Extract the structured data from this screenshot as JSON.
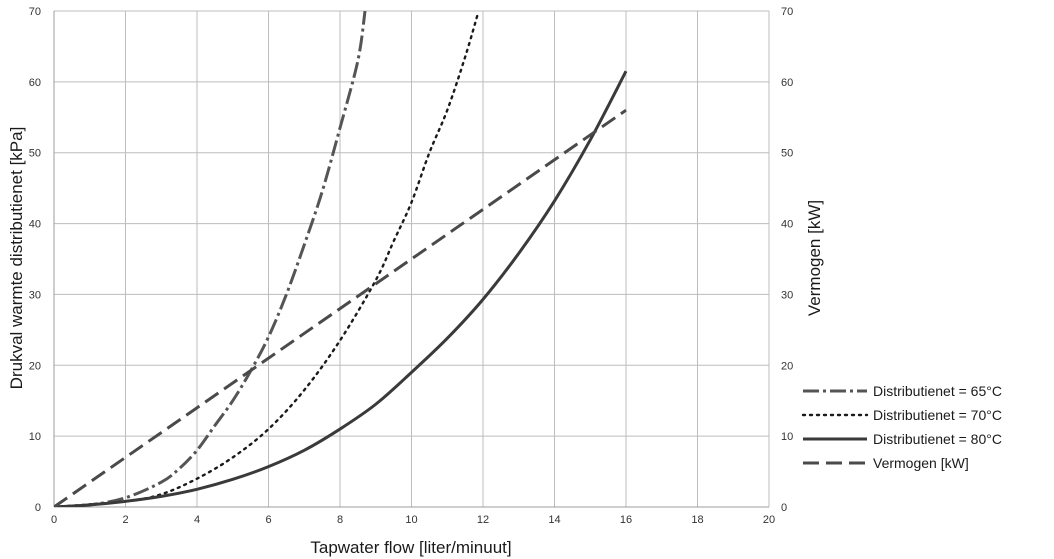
{
  "chart_data": {
    "type": "line",
    "xlabel": "Tapwater flow [liter/minuut]",
    "ylabel_left": "Drukval warmte distributienet [kPa]",
    "ylabel_right": "Vermogen [kW]",
    "xlim": [
      0,
      20
    ],
    "ylim_left": [
      0,
      70
    ],
    "ylim_right": [
      0,
      70
    ],
    "x_ticks": [
      "0",
      "2",
      "4",
      "6",
      "8",
      "10",
      "12",
      "14",
      "16",
      "18",
      "20"
    ],
    "y_ticks_left": [
      "0",
      "10",
      "20",
      "30",
      "40",
      "50",
      "60",
      "70"
    ],
    "y_ticks_right": [
      "0",
      "10",
      "20",
      "30",
      "40",
      "50",
      "60",
      "70"
    ],
    "grid": true,
    "legend_position": "right",
    "series": [
      {
        "name": "Distributienet = 65°C",
        "style": "dashdot",
        "color": "#555555",
        "points": [
          [
            0,
            0
          ],
          [
            1,
            0.3
          ],
          [
            2,
            1.3
          ],
          [
            3,
            3.5
          ],
          [
            3.5,
            5.4
          ],
          [
            4,
            8
          ],
          [
            4.5,
            11.5
          ],
          [
            5,
            15
          ],
          [
            5.5,
            19.2
          ],
          [
            6,
            24
          ],
          [
            6.5,
            30
          ],
          [
            7,
            37
          ],
          [
            7.5,
            44.5
          ],
          [
            8,
            53.5
          ],
          [
            8.5,
            63
          ],
          [
            8.7,
            70
          ]
        ]
      },
      {
        "name": "Distributienet = 70°C",
        "style": "dotted",
        "color": "#1a1a1a",
        "points": [
          [
            0,
            0
          ],
          [
            2,
            0.8
          ],
          [
            3,
            1.8
          ],
          [
            4,
            4
          ],
          [
            5,
            7
          ],
          [
            6,
            11
          ],
          [
            7,
            16.5
          ],
          [
            8,
            23.5
          ],
          [
            9,
            32
          ],
          [
            9.5,
            37.5
          ],
          [
            10,
            43
          ],
          [
            10.5,
            50
          ],
          [
            11,
            56
          ],
          [
            11.5,
            63.5
          ],
          [
            11.85,
            69.5
          ]
        ]
      },
      {
        "name": "Distributienet = 80°C",
        "style": "solid",
        "color": "#3a3a3a",
        "points": [
          [
            0,
            0
          ],
          [
            1,
            0.3
          ],
          [
            2,
            0.8
          ],
          [
            3,
            1.5
          ],
          [
            4,
            2.5
          ],
          [
            5,
            3.9
          ],
          [
            6,
            5.7
          ],
          [
            7,
            8
          ],
          [
            8,
            11
          ],
          [
            9,
            14.5
          ],
          [
            10,
            19
          ],
          [
            11,
            23.8
          ],
          [
            12,
            29.3
          ],
          [
            13,
            35.8
          ],
          [
            14,
            43.2
          ],
          [
            15,
            51.8
          ],
          [
            16,
            61.5
          ]
        ]
      },
      {
        "name": "Vermogen [kW]",
        "style": "dashed",
        "color": "#4a4a4a",
        "points": [
          [
            0,
            0
          ],
          [
            16,
            56
          ]
        ]
      }
    ]
  }
}
